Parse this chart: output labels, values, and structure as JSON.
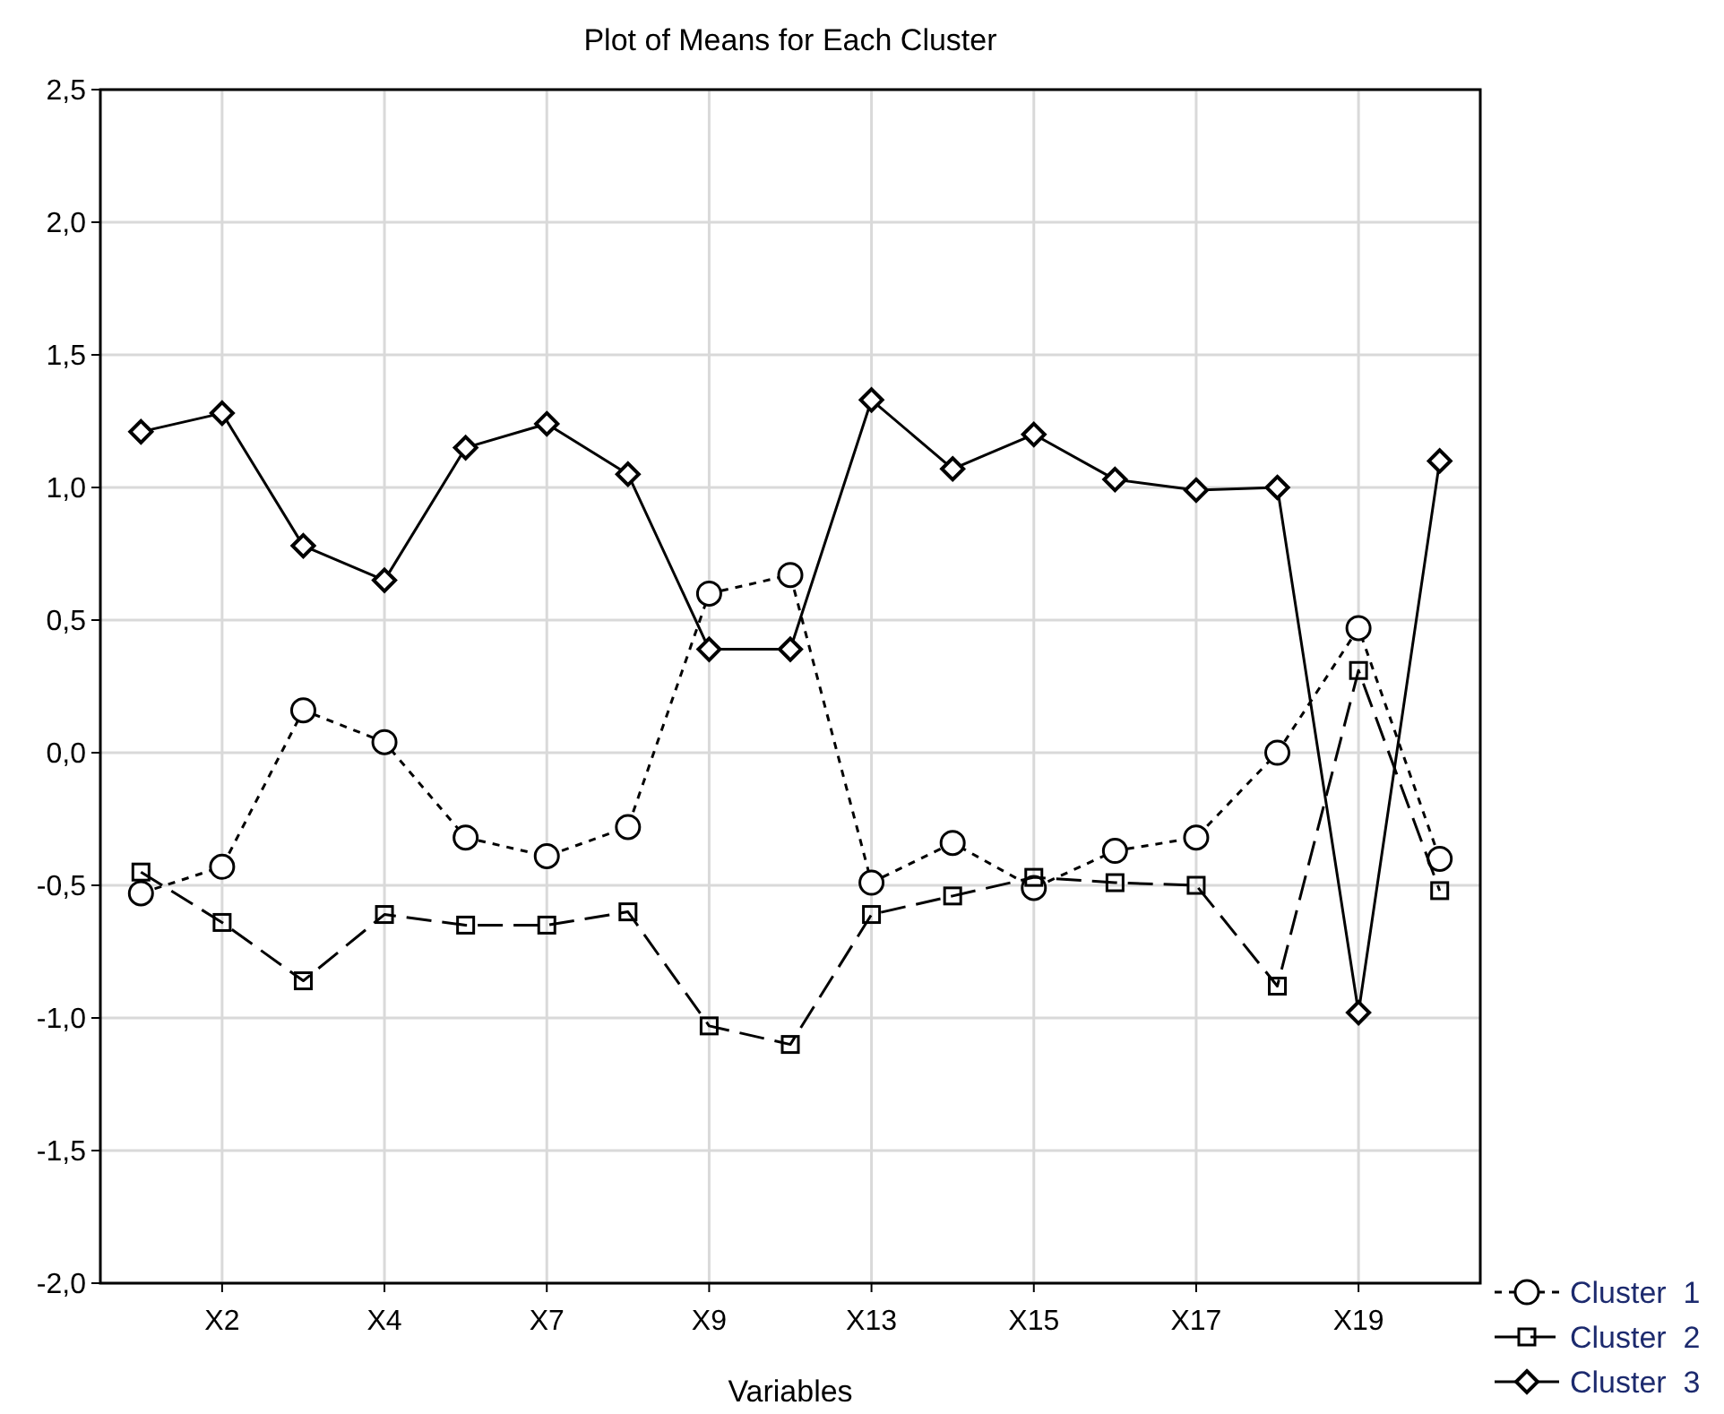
{
  "chart_data": {
    "type": "line",
    "title": "Plot of Means for Each Cluster",
    "xlabel": "Variables",
    "categories": [
      null,
      "X2",
      null,
      "X4",
      null,
      "X7",
      null,
      "X9",
      null,
      "X13",
      null,
      "X15",
      null,
      "X17",
      null,
      "X19",
      null
    ],
    "series": [
      {
        "name": "Cluster  1",
        "color": "#000000",
        "marker": "circle",
        "line_style": "dotted",
        "values": [
          -0.53,
          -0.43,
          0.16,
          0.04,
          -0.32,
          -0.39,
          -0.28,
          0.6,
          0.67,
          -0.49,
          -0.34,
          -0.51,
          -0.37,
          -0.32,
          0.0,
          0.47,
          -0.4
        ]
      },
      {
        "name": "Cluster  2",
        "color": "#000000",
        "marker": "square",
        "line_style": "dashed",
        "values": [
          -0.45,
          -0.64,
          -0.86,
          -0.61,
          -0.65,
          -0.65,
          -0.6,
          -1.03,
          -1.1,
          -0.61,
          -0.54,
          -0.47,
          -0.49,
          -0.5,
          -0.88,
          0.31,
          -0.52
        ]
      },
      {
        "name": "Cluster  3",
        "color": "#000000",
        "marker": "diamond",
        "line_style": "solid",
        "values": [
          1.21,
          1.28,
          0.78,
          0.65,
          1.15,
          1.24,
          1.05,
          0.39,
          0.39,
          1.33,
          1.07,
          1.2,
          1.03,
          0.99,
          1.0,
          -0.98,
          1.1
        ]
      }
    ],
    "ylim": [
      -2,
      2.5
    ],
    "yticks": [
      {
        "value": -2,
        "label": "-2,0"
      },
      {
        "value": -1.5,
        "label": "-1,5"
      },
      {
        "value": -1,
        "label": "-1,0"
      },
      {
        "value": -0.5,
        "label": "-0,5"
      },
      {
        "value": 0,
        "label": "0,0"
      },
      {
        "value": 0.5,
        "label": "0,5"
      },
      {
        "value": 1,
        "label": "1,0"
      },
      {
        "value": 1.5,
        "label": "1,5"
      },
      {
        "value": 2,
        "label": "2,0"
      },
      {
        "value": 2.5,
        "label": "2,5"
      }
    ],
    "grid": true,
    "legend": "bottom right"
  }
}
